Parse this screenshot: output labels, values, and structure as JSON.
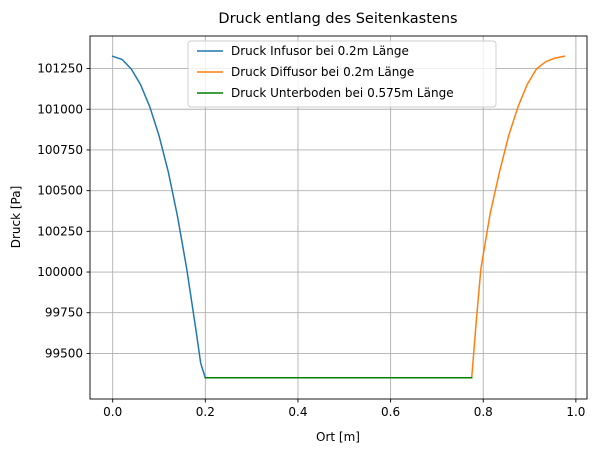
{
  "chart_data": {
    "type": "line",
    "title": "Druck entlang des Seitenkastens",
    "xlabel": "Ort [m]",
    "ylabel": "Druck [Pa]",
    "xlim": [
      -0.049,
      1.024
    ],
    "ylim": [
      99220,
      101450
    ],
    "xticks": [
      0.0,
      0.2,
      0.4,
      0.6,
      0.8,
      1.0
    ],
    "xtick_labels": [
      "0.0",
      "0.2",
      "0.4",
      "0.6",
      "0.8",
      "1.0"
    ],
    "yticks": [
      99500,
      99750,
      100000,
      100250,
      100500,
      100750,
      101000,
      101250
    ],
    "ytick_labels": [
      "99500",
      "99750",
      "100000",
      "100250",
      "100500",
      "100750",
      "101000",
      "101250"
    ],
    "grid": true,
    "legend_position": "upper-center",
    "series": [
      {
        "name": "Druck Infusor bei 0.2m Länge",
        "color": "#1f77b4",
        "points": [
          [
            0.0,
            101325
          ],
          [
            0.02,
            101306
          ],
          [
            0.04,
            101248
          ],
          [
            0.06,
            101152
          ],
          [
            0.08,
            101015
          ],
          [
            0.1,
            100838
          ],
          [
            0.12,
            100615
          ],
          [
            0.14,
            100342
          ],
          [
            0.16,
            100017
          ],
          [
            0.18,
            99638
          ],
          [
            0.19,
            99440
          ],
          [
            0.2,
            99350
          ]
        ]
      },
      {
        "name": "Druck Diffusor bei 0.2m Länge",
        "color": "#ff7f0e",
        "points": [
          [
            0.775,
            99350
          ],
          [
            0.785,
            99700
          ],
          [
            0.795,
            100020
          ],
          [
            0.815,
            100360
          ],
          [
            0.835,
            100615
          ],
          [
            0.855,
            100838
          ],
          [
            0.875,
            101015
          ],
          [
            0.895,
            101152
          ],
          [
            0.915,
            101248
          ],
          [
            0.935,
            101292
          ],
          [
            0.955,
            101314
          ],
          [
            0.975,
            101325
          ]
        ]
      },
      {
        "name": "Druck Unterboden bei 0.575m Länge",
        "color": "#008000",
        "points": [
          [
            0.2,
            99350
          ],
          [
            0.775,
            99350
          ]
        ]
      }
    ]
  }
}
